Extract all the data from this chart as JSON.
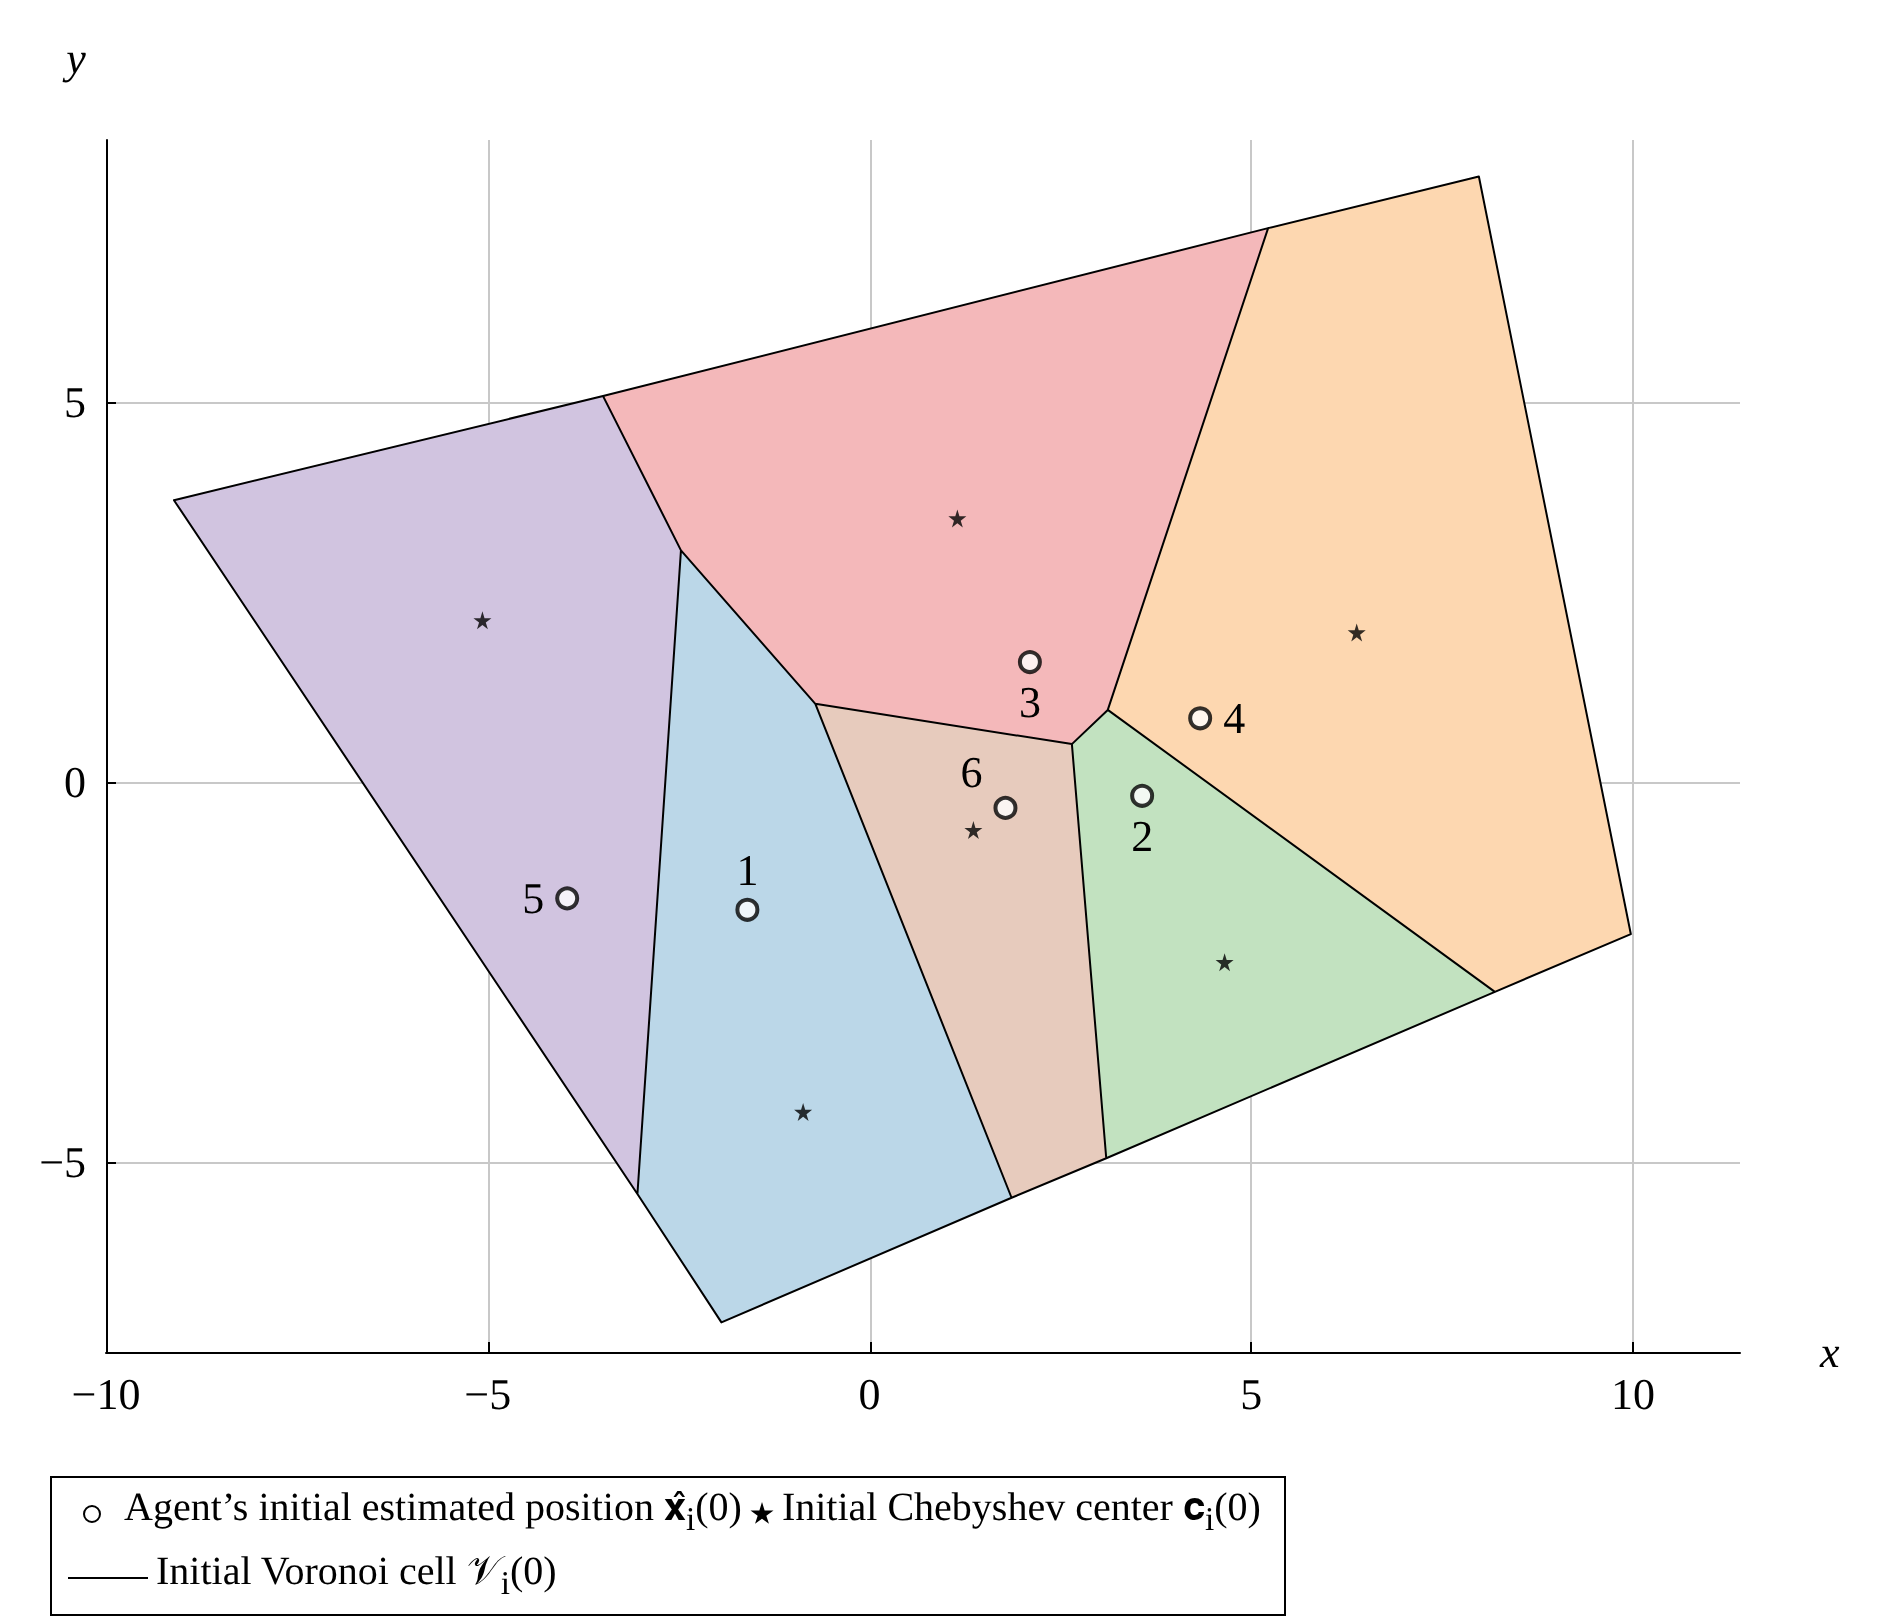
{
  "chart_data": {
    "type": "scatter",
    "xlabel": "x",
    "ylabel": "y",
    "xlim": [
      -10,
      11.4
    ],
    "ylim": [
      -7.5,
      8.45
    ],
    "xticks": [
      {
        "value": -10,
        "label": "−10"
      },
      {
        "value": -5,
        "label": "−5"
      },
      0,
      5,
      10
    ],
    "yticks": [
      {
        "value": -5,
        "label": "−5"
      },
      0,
      5
    ],
    "grid": true,
    "legend": "bottom",
    "annotations": [
      {
        "text": "1",
        "x": -1.6,
        "y": -1.68
      },
      {
        "text": "2",
        "x": 3.57,
        "y": -0.18
      },
      {
        "text": "3",
        "x": 2.1,
        "y": 1.58
      },
      {
        "text": "4",
        "x": 4.33,
        "y": 0.84
      },
      {
        "text": "5",
        "x": -3.96,
        "y": -1.53
      },
      {
        "text": "6",
        "x": 1.78,
        "y": -0.34
      }
    ],
    "series": [
      {
        "type": "area",
        "color": "#d1c4e0",
        "x": [
          -9.11,
          -3.49,
          -2.47,
          -3.04
        ],
        "values": [
          3.71,
          5.08,
          3.05,
          -5.42
        ]
      },
      {
        "type": "area",
        "color": "#f4b8ba",
        "x": [
          -3.49,
          5.22,
          3.12,
          2.65,
          -0.71,
          -2.47
        ],
        "values": [
          5.08,
          7.29,
          0.95,
          0.5,
          1.03,
          3.05
        ]
      },
      {
        "type": "area",
        "color": "#fdd7b0",
        "x": [
          5.22,
          7.98,
          9.97,
          8.19,
          3.12
        ],
        "values": [
          7.29,
          7.97,
          -2.0,
          -2.76,
          0.95
        ]
      },
      {
        "type": "area",
        "color": "#bbd7e8",
        "x": [
          -2.47,
          -0.71,
          1.86,
          -1.94,
          -3.04
        ],
        "values": [
          3.05,
          1.03,
          -5.47,
          -7.11,
          -5.42
        ]
      },
      {
        "type": "area",
        "color": "#e7cbbd",
        "x": [
          -0.71,
          2.65,
          3.1,
          1.86
        ],
        "values": [
          1.03,
          0.5,
          -4.95,
          -5.47
        ]
      },
      {
        "type": "area",
        "color": "#c2e2c0",
        "x": [
          2.65,
          3.12,
          8.19,
          3.1
        ],
        "values": [
          0.5,
          0.95,
          -2.76,
          -4.95
        ]
      },
      {
        "name": "Agent’s initial estimated position 𝐱̂$_{i}$(0)",
        "color": "#000000",
        "marker": "circle",
        "x": [
          -1.6,
          3.57,
          2.1,
          4.33,
          -3.96,
          1.78
        ],
        "values": [
          -1.68,
          -0.18,
          1.58,
          0.84,
          -1.53,
          -0.34
        ]
      },
      {
        "name": "Initial Chebyshev center 𝐜$_{i}$(0)",
        "color": "#000000",
        "marker": "star",
        "x": [
          -5.07,
          1.15,
          6.38,
          -0.87,
          1.36,
          4.65
        ],
        "values": [
          2.13,
          3.47,
          1.97,
          -4.34,
          -0.63,
          -2.37
        ]
      },
      {
        "type": "line",
        "name": "Initial Voronoi cell 𝒱$_{i}$(0)",
        "color": "#000000",
        "line_style": "solid",
        "marker": "none",
        "x": [
          -9.11,
          -3.49,
          5.22,
          7.98,
          9.97,
          8.19,
          3.1,
          1.86,
          -1.94,
          -3.04,
          -9.11,
          -3.04,
          -2.47,
          -3.49,
          -2.47,
          -0.71,
          2.65,
          3.12,
          5.22,
          3.12,
          8.19,
          3.12,
          2.65,
          3.1,
          2.65,
          -0.71,
          1.86
        ],
        "values": [
          3.71,
          5.08,
          7.29,
          7.97,
          -2.0,
          -2.76,
          -4.95,
          -5.47,
          -7.11,
          -5.42,
          3.71,
          -5.42,
          3.05,
          5.08,
          3.05,
          1.03,
          0.5,
          0.95,
          7.29,
          0.95,
          -2.76,
          0.95,
          0.5,
          -4.95,
          0.5,
          1.03,
          -5.47
        ]
      }
    ]
  }
}
